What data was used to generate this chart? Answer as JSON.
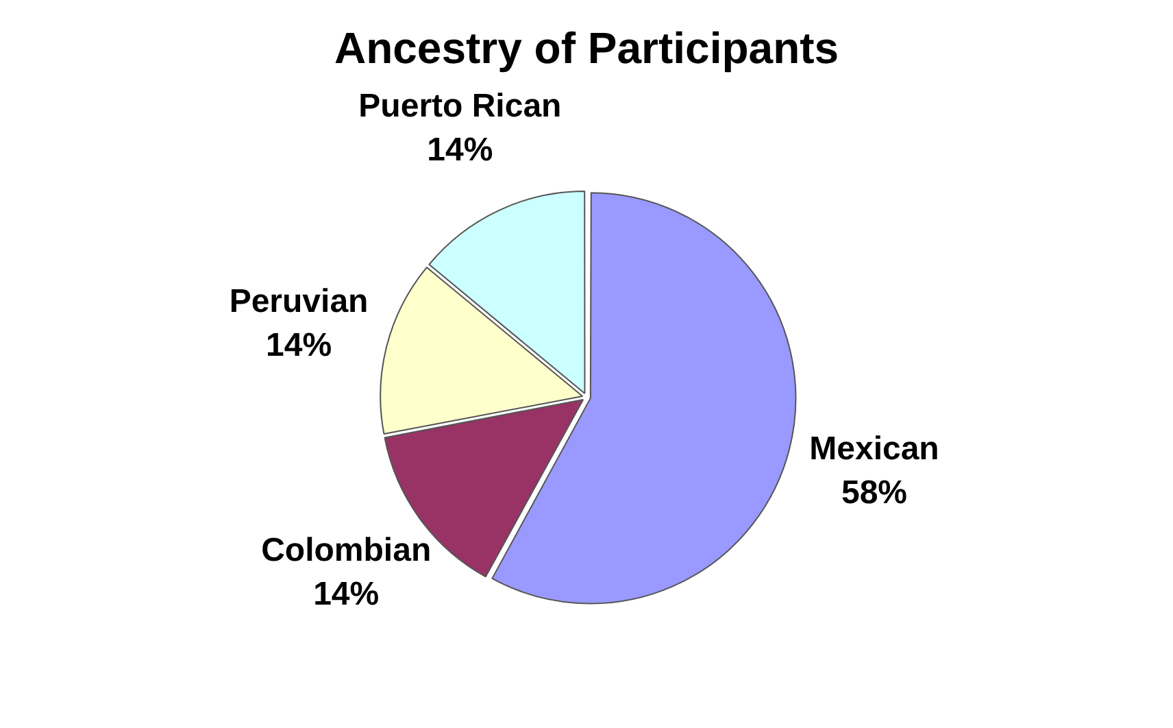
{
  "chart_data": {
    "type": "pie",
    "title": "Ancestry of Participants",
    "categories": [
      "Mexican",
      "Colombian",
      "Peruvian",
      "Puerto Rican"
    ],
    "values": [
      58,
      14,
      14,
      14
    ],
    "colors": [
      "#9999ff",
      "#993366",
      "#ffffcc",
      "#ccffff"
    ],
    "value_labels": [
      "58%",
      "14%",
      "14%",
      "14%"
    ],
    "legend": false
  }
}
